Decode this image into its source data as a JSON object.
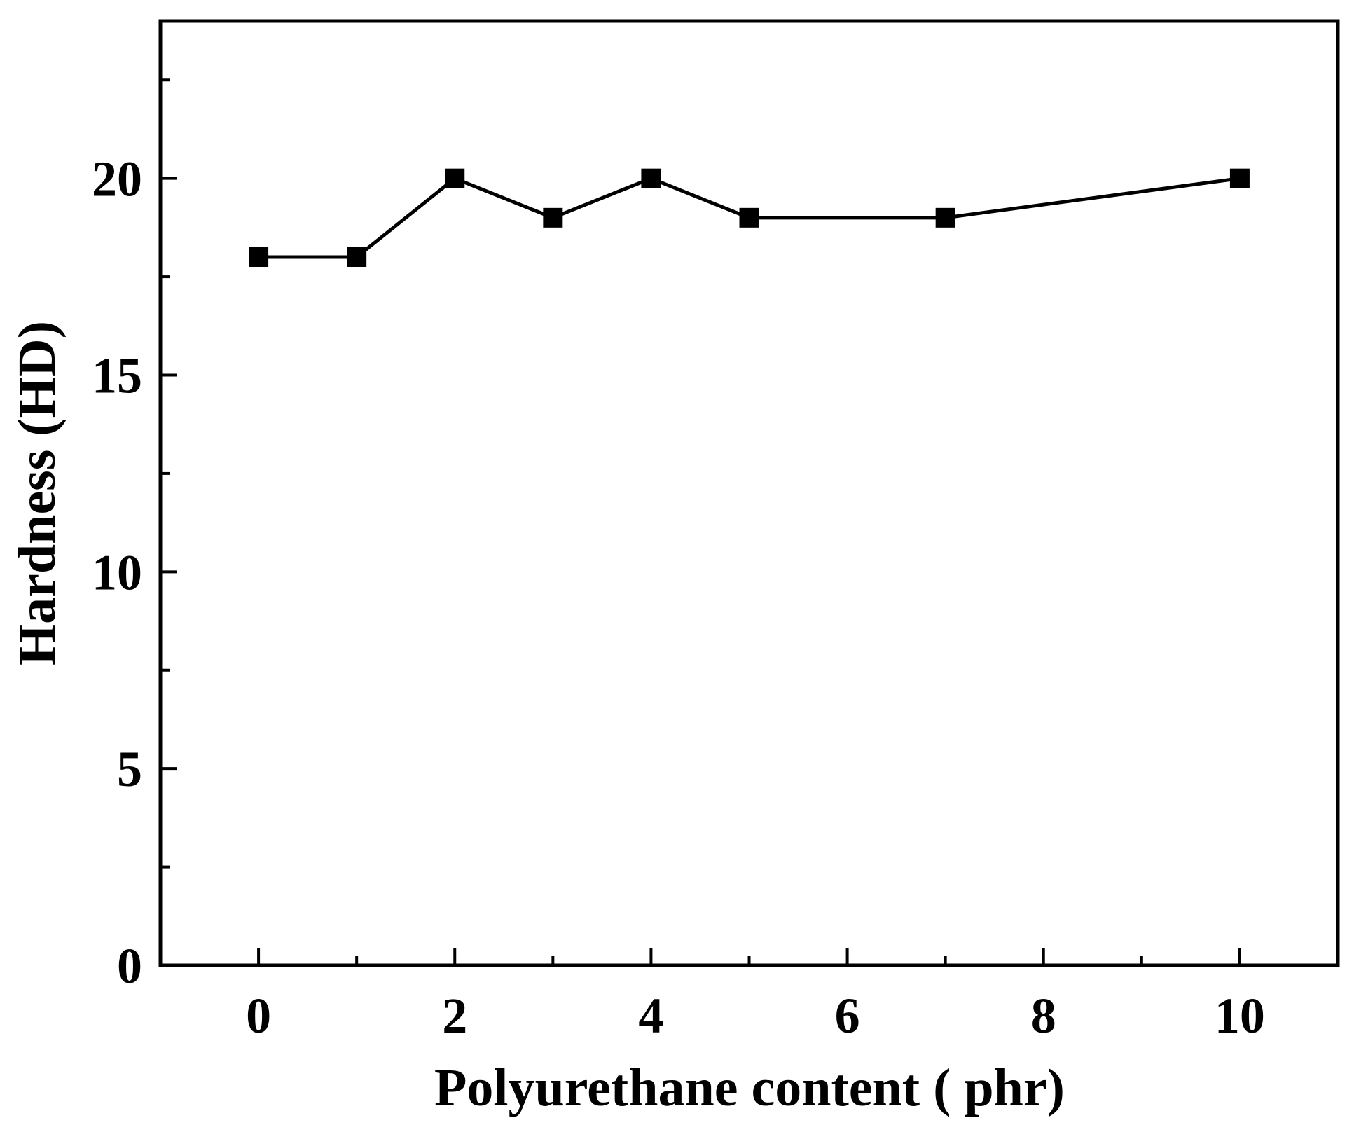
{
  "chart_data": {
    "type": "line",
    "xlabel": "Polyurethane content ( phr)",
    "ylabel": "Hardness (HD)",
    "xlim": [
      -1,
      11
    ],
    "ylim": [
      0,
      24
    ],
    "x_ticks": [
      0,
      2,
      4,
      6,
      8,
      10
    ],
    "x_minor_ticks": [
      1,
      3,
      5,
      7,
      9
    ],
    "y_ticks": [
      0,
      5,
      10,
      15,
      20
    ],
    "y_minor_ticks": [
      2.5,
      7.5,
      12.5,
      17.5,
      22.5
    ],
    "grid": false,
    "series": [
      {
        "marker": "square",
        "color": "#000000",
        "x": [
          0,
          1,
          2,
          3,
          4,
          5,
          7,
          10
        ],
        "y": [
          18,
          18,
          20,
          19,
          20,
          19,
          19,
          20
        ]
      }
    ]
  }
}
